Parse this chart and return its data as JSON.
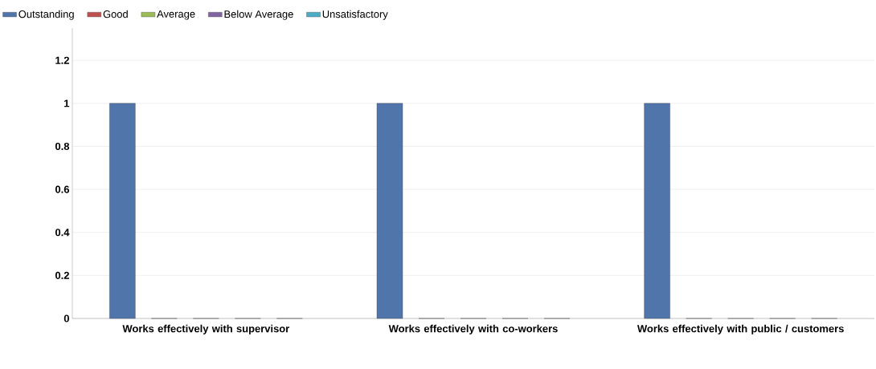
{
  "chart_data": {
    "type": "bar",
    "categories": [
      "Works effectively with supervisor",
      "Works effectively with co-workers",
      "Works effectively with public / customers"
    ],
    "series": [
      {
        "name": "Outstanding",
        "color": "#4f75ab",
        "values": [
          1,
          1,
          1
        ]
      },
      {
        "name": "Good",
        "color": "#c0504d",
        "values": [
          0,
          0,
          0
        ]
      },
      {
        "name": "Average",
        "color": "#9bbb59",
        "values": [
          0,
          0,
          0
        ]
      },
      {
        "name": "Below Average",
        "color": "#8064a2",
        "values": [
          0,
          0,
          0
        ]
      },
      {
        "name": "Unsatisfactory",
        "color": "#4bacc6",
        "values": [
          0,
          0,
          0
        ]
      }
    ],
    "ylim": [
      0,
      1.35
    ],
    "yticks": [
      0,
      0.2,
      0.4,
      0.6,
      0.8,
      1,
      1.2
    ],
    "grid": "y",
    "legend": "top left"
  }
}
